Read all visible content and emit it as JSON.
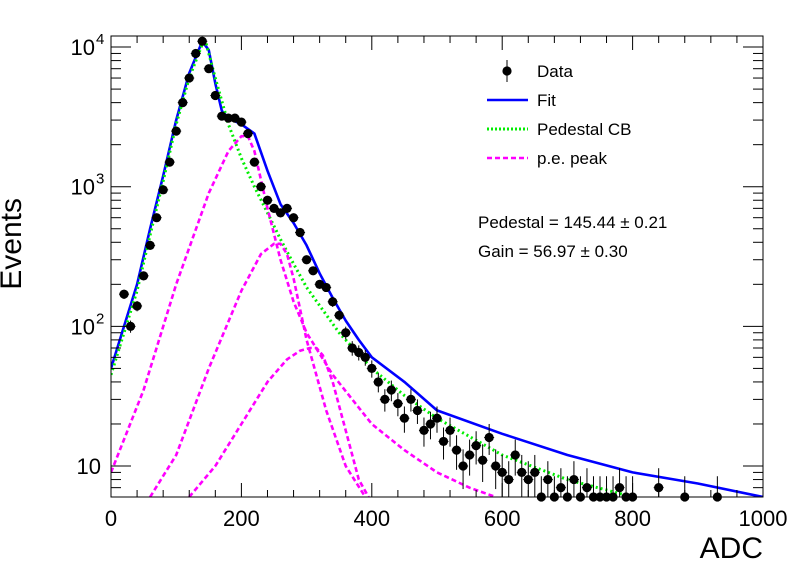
{
  "chart_data": {
    "type": "scatter",
    "title": "",
    "xlabel": "ADC",
    "ylabel": "Events",
    "xlim": [
      0,
      1000
    ],
    "ylim": [
      6,
      12000
    ],
    "yscale": "log",
    "grid": false,
    "legend_placement": "top-right",
    "x_ticks": [
      0,
      200,
      400,
      600,
      800,
      1000
    ],
    "x_tick_labels": [
      "0",
      "200",
      "400",
      "600",
      "800",
      "1000"
    ],
    "y_ticks": [
      10,
      100,
      1000,
      10000
    ],
    "y_tick_labels": [
      {
        "base": "10",
        "exp": ""
      },
      {
        "base": "10",
        "exp": "2"
      },
      {
        "base": "10",
        "exp": "3"
      },
      {
        "base": "10",
        "exp": "4"
      }
    ],
    "annotations": [
      "Pedestal = 145.44 ± 0.21",
      "Gain = 56.97 ± 0.30"
    ],
    "legend": [
      {
        "label": "Data",
        "style": "marker",
        "color": "#000000"
      },
      {
        "label": "Fit",
        "style": "solid",
        "color": "#0000ff"
      },
      {
        "label": "Pedestal CB",
        "style": "dotted",
        "color": "#00ee00"
      },
      {
        "label": "p.e. peak",
        "style": "dashed",
        "color": "#ff00ff"
      }
    ],
    "series": [
      {
        "name": "Data",
        "kind": "points",
        "color": "#000000",
        "x": [
          20,
          30,
          40,
          50,
          60,
          70,
          80,
          90,
          100,
          110,
          120,
          130,
          140,
          150,
          160,
          170,
          180,
          190,
          200,
          210,
          220,
          230,
          240,
          250,
          260,
          270,
          280,
          290,
          300,
          310,
          320,
          330,
          340,
          350,
          360,
          370,
          380,
          390,
          400,
          410,
          420,
          430,
          440,
          450,
          460,
          470,
          480,
          490,
          500,
          510,
          520,
          530,
          540,
          550,
          560,
          570,
          580,
          590,
          600,
          610,
          620,
          630,
          640,
          650,
          660,
          670,
          680,
          690,
          700,
          710,
          720,
          730,
          740,
          750,
          760,
          770,
          780,
          790,
          800,
          840,
          880,
          930
        ],
        "y": [
          170,
          100,
          140,
          230,
          380,
          600,
          950,
          1500,
          2500,
          4000,
          6000,
          9000,
          11000,
          7000,
          4500,
          3200,
          3100,
          3100,
          2900,
          2400,
          1500,
          1000,
          800,
          700,
          650,
          700,
          600,
          470,
          300,
          250,
          200,
          190,
          150,
          120,
          90,
          70,
          65,
          60,
          50,
          40,
          30,
          35,
          28,
          22,
          30,
          25,
          18,
          20,
          22,
          15,
          18,
          13,
          10,
          12,
          14,
          11,
          16,
          10,
          9,
          8,
          12,
          9,
          8,
          9,
          6,
          8,
          6,
          7,
          6,
          8,
          6,
          7,
          6,
          6,
          6,
          6,
          7,
          6,
          6,
          7,
          6,
          6
        ]
      },
      {
        "name": "Fit",
        "kind": "line",
        "color": "#0000ff",
        "x": [
          0,
          20,
          40,
          60,
          80,
          100,
          120,
          140,
          150,
          160,
          170,
          180,
          200,
          220,
          240,
          260,
          280,
          300,
          320,
          340,
          360,
          380,
          400,
          450,
          500,
          600,
          700,
          800,
          900,
          1000
        ],
        "y": [
          50,
          100,
          200,
          500,
          1200,
          3000,
          6500,
          11000,
          9500,
          5500,
          3500,
          3100,
          2800,
          2400,
          1300,
          750,
          550,
          380,
          240,
          160,
          110,
          80,
          60,
          40,
          25,
          17,
          12,
          9,
          7.5,
          6
        ]
      },
      {
        "name": "Pedestal CB",
        "kind": "line",
        "color": "#00ee00",
        "x": [
          0,
          20,
          40,
          60,
          80,
          100,
          120,
          140,
          145,
          160,
          180,
          200,
          220,
          240,
          260,
          280,
          300,
          350,
          400,
          450,
          500,
          600,
          700,
          800
        ],
        "y": [
          45,
          90,
          180,
          450,
          1100,
          2800,
          6000,
          10500,
          11000,
          6000,
          2800,
          1600,
          1000,
          650,
          420,
          280,
          190,
          90,
          50,
          32,
          22,
          12,
          8,
          6
        ]
      },
      {
        "name": "p.e. peak 1",
        "kind": "line",
        "color": "#ff00ff",
        "x": [
          0,
          50,
          100,
          150,
          180,
          200,
          210,
          220,
          240,
          260,
          280,
          300,
          340,
          400,
          450,
          500,
          550,
          590
        ],
        "y": [
          9,
          35,
          200,
          900,
          1800,
          2300,
          2300,
          1800,
          700,
          300,
          150,
          90,
          45,
          20,
          13,
          9,
          7,
          6
        ]
      },
      {
        "name": "p.e. peak 2",
        "kind": "line",
        "color": "#ff00ff",
        "x": [
          60,
          100,
          150,
          200,
          230,
          250,
          260,
          270,
          280,
          300,
          330,
          360,
          390
        ],
        "y": [
          6,
          12,
          50,
          180,
          330,
          390,
          390,
          330,
          220,
          80,
          25,
          10,
          6
        ]
      },
      {
        "name": "p.e. peak 3",
        "kind": "line",
        "color": "#ff00ff",
        "x": [
          120,
          160,
          200,
          240,
          270,
          290,
          305,
          315,
          325,
          340,
          360,
          380,
          395
        ],
        "y": [
          6,
          10,
          20,
          40,
          58,
          67,
          70,
          70,
          62,
          40,
          18,
          8,
          6
        ]
      }
    ]
  }
}
